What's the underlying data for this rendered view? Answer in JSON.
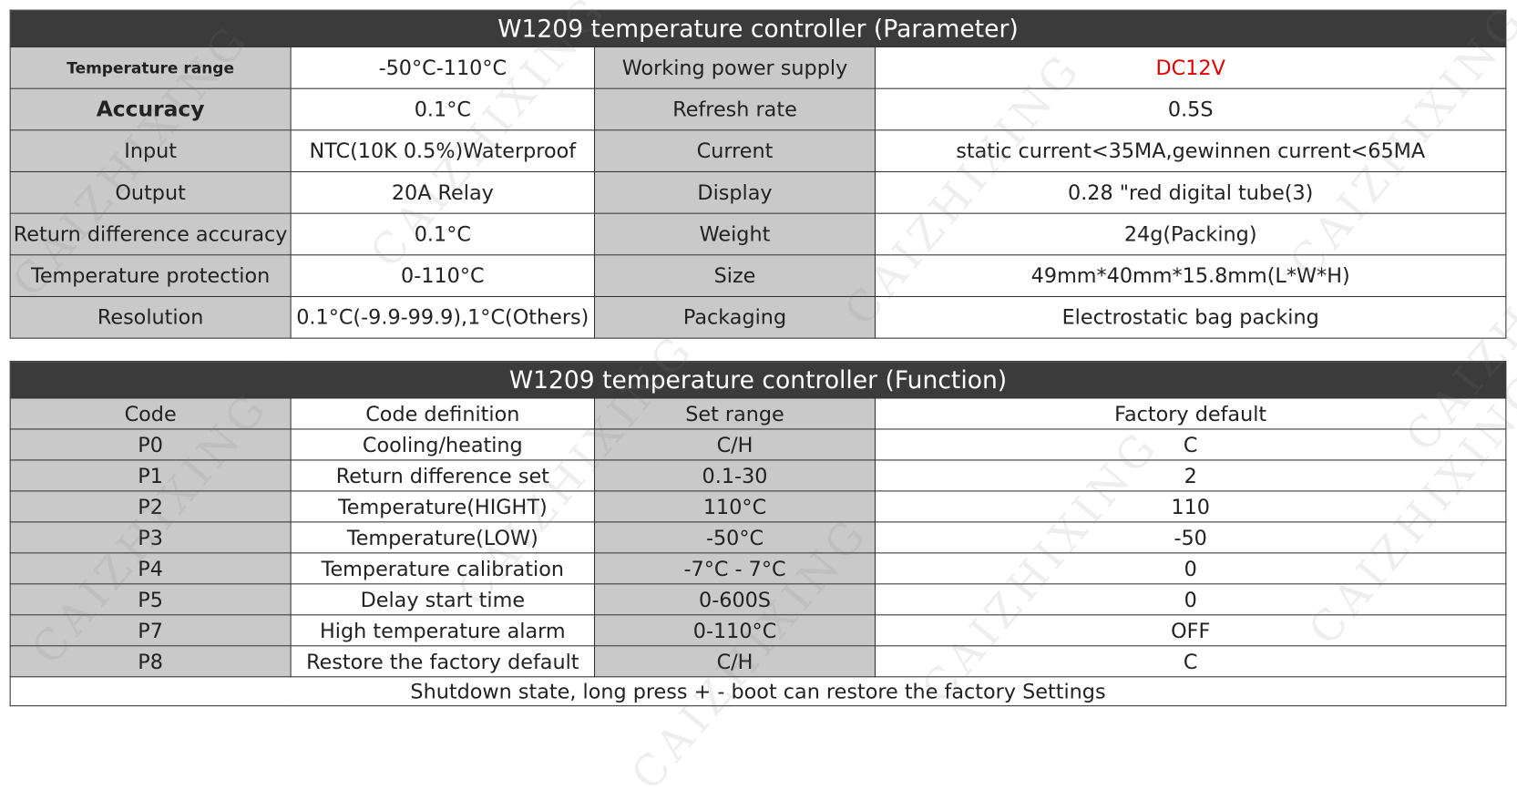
{
  "parameter_table": {
    "title": "W1209 temperature controller (Parameter)",
    "rows": [
      [
        "Temperature range",
        "-50°C-110°C",
        "Working power supply",
        "DC12V"
      ],
      [
        "Accuracy",
        "0.1°C",
        "Refresh rate",
        "0.5S"
      ],
      [
        "Input",
        "NTC(10K 0.5%)Waterproof",
        "Current",
        "static current<35MA,gewinnen current<65MA"
      ],
      [
        "Output",
        "20A Relay",
        "Display",
        "0.28 \"red  digital tube(3)"
      ],
      [
        "Return difference accuracy",
        "0.1°C",
        "Weight",
        "24g(Packing)"
      ],
      [
        "Temperature protection",
        "0-110°C",
        "Size",
        "49mm*40mm*15.8mm(L*W*H)"
      ],
      [
        "Resolution",
        "0.1°C(-9.9-99.9),1°C(Others)",
        "Packaging",
        "Electrostatic bag packing"
      ]
    ]
  },
  "function_table": {
    "title": "W1209 temperature controller (Function)",
    "header": [
      "Code",
      "Code definition",
      "Set range",
      "Factory default"
    ],
    "rows": [
      [
        "P0",
        "Cooling/heating",
        "C/H",
        "C"
      ],
      [
        "P1",
        "Return difference set",
        "0.1-30",
        "2"
      ],
      [
        "P2",
        "Temperature(HIGHT)",
        "110°C",
        "110"
      ],
      [
        "P3",
        "Temperature(LOW)",
        "-50°C",
        "-50"
      ],
      [
        "P4",
        "Temperature calibration",
        "-7°C - 7°C",
        "0"
      ],
      [
        "P5",
        "Delay start time",
        "0-600S",
        "0"
      ],
      [
        "P7",
        "High temperature alarm",
        "0-110°C",
        "OFF"
      ],
      [
        "P8",
        "Restore the factory default",
        "C/H",
        "C"
      ]
    ],
    "note": "Shutdown state, long press + - boot can restore the factory Settings"
  },
  "watermark": "CAIZHIXING"
}
